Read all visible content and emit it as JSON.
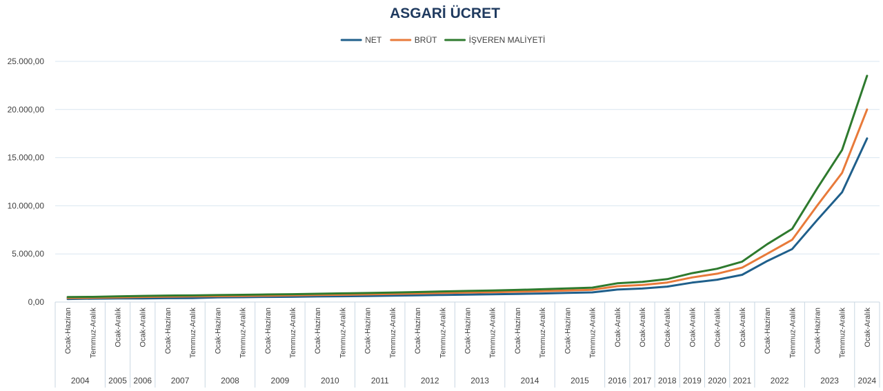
{
  "chart_data": {
    "type": "line",
    "title": "ASGARİ ÜCRET",
    "legend": {
      "placement": "top-center"
    },
    "grid": true,
    "ylim": [
      0,
      25000
    ],
    "yticks": [
      "0,00",
      "5.000,00",
      "10.000,00",
      "15.000,00",
      "20.000,00",
      "25.000,00"
    ],
    "yticks_values": [
      0,
      5000,
      10000,
      15000,
      20000,
      25000
    ],
    "categories": [
      "Ocak-Haziran",
      "Temmuz-Aralık",
      "Ocak-Aralık",
      "Ocak-Aralık",
      "Ocak-Haziran",
      "Temmuz-Aralık",
      "Ocak-Haziran",
      "Temmuz-Aralık",
      "Ocak-Haziran",
      "Temmuz-Aralık",
      "Ocak-Haziran",
      "Temmuz-Aralık",
      "Ocak-Haziran",
      "Temmuz-Aralık",
      "Ocak-Haziran",
      "Temmuz-Aralık",
      "Ocak-Haziran",
      "Temmuz-Aralık",
      "Ocak-Haziran",
      "Temmuz-Aralık",
      "Ocak-Haziran",
      "Temmuz-Aralık",
      "Ocak-Aralık",
      "Ocak-Aralık",
      "Ocak-Aralık",
      "Ocak-Aralık",
      "Ocak-Aralık",
      "Ocak-Aralık",
      "Ocak-Haziran",
      "Temmuz-Aralık",
      "Ocak-Haziran",
      "Temmuz-Aralık",
      "Ocak-Aralık"
    ],
    "years": [
      {
        "label": "2004",
        "span": 2
      },
      {
        "label": "2005",
        "span": 1
      },
      {
        "label": "2006",
        "span": 1
      },
      {
        "label": "2007",
        "span": 2
      },
      {
        "label": "2008",
        "span": 2
      },
      {
        "label": "2009",
        "span": 2
      },
      {
        "label": "2010",
        "span": 2
      },
      {
        "label": "2011",
        "span": 2
      },
      {
        "label": "2012",
        "span": 2
      },
      {
        "label": "2013",
        "span": 2
      },
      {
        "label": "2014",
        "span": 2
      },
      {
        "label": "2015",
        "span": 2
      },
      {
        "label": "2016",
        "span": 1
      },
      {
        "label": "2017",
        "span": 1
      },
      {
        "label": "2018",
        "span": 1
      },
      {
        "label": "2019",
        "span": 1
      },
      {
        "label": "2020",
        "span": 1
      },
      {
        "label": "2021",
        "span": 1
      },
      {
        "label": "2022",
        "span": 2
      },
      {
        "label": "2023",
        "span": 2
      },
      {
        "label": "2024",
        "span": 1
      }
    ],
    "series": [
      {
        "name": "NET",
        "color": "#1f5f8b",
        "values": [
          318,
          350,
          380,
          380,
          403,
          419,
          481,
          503,
          527,
          547,
          577,
          599,
          630,
          659,
          701,
          740,
          774,
          804,
          847,
          891,
          949,
          1000,
          1300,
          1404,
          1603,
          2020,
          2324,
          2826,
          4253,
          5500,
          8507,
          11402,
          17002
        ]
      },
      {
        "name": "BRÜT",
        "color": "#e87a3a",
        "values": [
          424,
          444,
          489,
          531,
          563,
          585,
          608,
          638,
          666,
          693,
          730,
          760,
          797,
          837,
          886,
          941,
          979,
          1021,
          1071,
          1134,
          1201,
          1273,
          1647,
          1777,
          2029,
          2558,
          2943,
          3577,
          5004,
          6471,
          10008,
          13414,
          20002
        ]
      },
      {
        "name": "İŞVEREN MALİYETİ",
        "color": "#2e7a2e",
        "values": [
          520,
          540,
          590,
          640,
          670,
          690,
          720,
          755,
          790,
          820,
          860,
          900,
          940,
          985,
          1040,
          1100,
          1150,
          1200,
          1260,
          1330,
          1410,
          1500,
          1950,
          2090,
          2380,
          3000,
          3460,
          4200,
          6000,
          7600,
          11800,
          15800,
          23500
        ]
      }
    ]
  }
}
